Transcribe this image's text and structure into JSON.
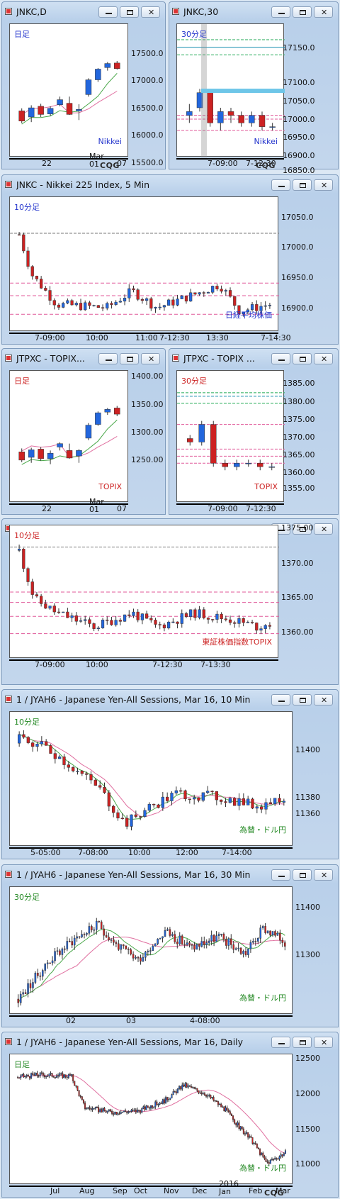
{
  "panels": [
    {
      "id": "p1",
      "title": "JNKC,D",
      "tag": "日足",
      "tag_color": "#2233cc",
      "label": "Nikkei",
      "label_color": "#2233cc",
      "yticks": [
        "17500.0",
        "17000.0",
        "16500.0",
        "16000.0",
        "15500.0"
      ],
      "xticks": [
        "22",
        "Mar\n01",
        "07"
      ],
      "logo": "CQG"
    },
    {
      "id": "p2",
      "title": "JNKC,30",
      "tag": "30分足",
      "tag_color": "#2233cc",
      "label": "Nikkei",
      "label_color": "#2233cc",
      "yticks": [
        "17150.0",
        "17100.0",
        "17050.0",
        "17000.0",
        "16950.0",
        "16900.0",
        "16850.0"
      ],
      "xticks": [
        "7-09:00",
        "7-12:30"
      ],
      "logo": "CQG"
    },
    {
      "id": "p3",
      "title": "JNKC - Nikkei 225 Index, 5 Min",
      "tag": "10分足",
      "tag_color": "#2233cc",
      "label": "日経平均株価",
      "label_color": "#2233cc",
      "yticks": [
        "17050.0",
        "17000.0",
        "16950.0",
        "16900.0"
      ],
      "xticks": [
        "7-09:00",
        "10:00",
        "11:00",
        "7-12:30",
        "13:30",
        "7-14:30"
      ]
    },
    {
      "id": "p4",
      "title": "JTPXC - TOPIX...",
      "tag": "日足",
      "tag_color": "#cc2222",
      "label": "TOPIX",
      "label_color": "#cc2222",
      "yticks": [
        "1400.00",
        "1350.00",
        "1300.00",
        "1250.00"
      ],
      "xticks": [
        "22",
        "Mar\n01",
        "07"
      ]
    },
    {
      "id": "p5",
      "title": "JTPXC - TOPIX ...",
      "tag": "30分足",
      "tag_color": "#cc2222",
      "label": "TOPIX",
      "label_color": "#cc2222",
      "yticks": [
        "1385.00",
        "1380.00",
        "1375.00",
        "1370.00",
        "1365.00",
        "1360.00",
        "1355.00"
      ],
      "xticks": [
        "7-09:00",
        "7-12:30"
      ]
    },
    {
      "id": "p6",
      "title": "JTPXC - TOPIX Index, 5 Min",
      "tag": "10分足",
      "tag_color": "#cc2222",
      "label": "東証株価指数TOPIX",
      "label_color": "#cc2222",
      "yticks": [
        "1375.00",
        "1370.00",
        "1365.00",
        "1360.00"
      ],
      "xticks": [
        "7-09:00",
        "10:00",
        "7-12:30",
        "7-13:30"
      ]
    },
    {
      "id": "p7",
      "title": "1 / JYAH6 - Japanese Yen-All Sessions, Mar 16, 10 Min",
      "tag": "10分足",
      "tag_color": "#228822",
      "label": "為替・ドル円",
      "label_color": "#228822",
      "yticks": [
        "11400",
        "11380",
        "11360"
      ],
      "xticks": [
        "5-05:00",
        "7-08:00",
        "10:00",
        "12:00",
        "7-14:00"
      ]
    },
    {
      "id": "p8",
      "title": "1 / JYAH6 - Japanese Yen-All Sessions, Mar 16, 30 Min",
      "tag": "30分足",
      "tag_color": "#228822",
      "label": "為替・ドル円",
      "label_color": "#228822",
      "yticks": [
        "11400",
        "11300"
      ],
      "xticks": [
        "02",
        "03",
        "4-08:00"
      ]
    },
    {
      "id": "p9",
      "title": "1 / JYAH6 - Japanese Yen-All Sessions, Mar 16, Daily",
      "tag": "日足",
      "tag_color": "#228822",
      "label": "為替・ドル円",
      "label_color": "#228822",
      "yticks": [
        "12500",
        "12000",
        "11500",
        "11000"
      ],
      "xticks": [
        "Jul",
        "Aug",
        "Sep",
        "Oct",
        "Nov",
        "Dec",
        "2016\nJan",
        "Feb",
        "Mar"
      ],
      "logo": "CQG"
    }
  ],
  "chart_data": [
    {
      "type": "candlestick",
      "title": "JNKC,D",
      "timeframe": "日足",
      "series_label": "Nikkei",
      "ylim": [
        15250,
        17700
      ],
      "categories": [
        "22",
        "23",
        "24",
        "25",
        "26",
        "29",
        "01",
        "02",
        "03",
        "04",
        "07"
      ],
      "ohlc": [
        [
          16080,
          16130,
          15840,
          15880
        ],
        [
          15960,
          16190,
          15860,
          16140
        ],
        [
          16170,
          16220,
          15960,
          16010
        ],
        [
          16020,
          16170,
          15980,
          16130
        ],
        [
          16200,
          16360,
          16170,
          16300
        ],
        [
          16230,
          16360,
          16000,
          16010
        ],
        [
          16080,
          16210,
          15900,
          16110
        ],
        [
          16400,
          16720,
          16360,
          16690
        ],
        [
          16690,
          16920,
          16650,
          16900
        ],
        [
          16930,
          17040,
          16870,
          17010
        ],
        [
          17020,
          17060,
          16890,
          16910
        ]
      ],
      "moving_averages": [
        "pink",
        "green"
      ]
    },
    {
      "type": "candlestick",
      "title": "JNKC,30",
      "timeframe": "30分足",
      "series_label": "Nikkei",
      "ylim": [
        16840,
        17170
      ],
      "ohlc": [
        [
          16940,
          16970,
          16920,
          16950
        ],
        [
          16960,
          17010,
          16950,
          17000
        ],
        [
          17000,
          17010,
          16910,
          16920
        ],
        [
          16920,
          16960,
          16900,
          16950
        ],
        [
          16950,
          16960,
          16920,
          16940
        ],
        [
          16940,
          16950,
          16910,
          16920
        ],
        [
          16920,
          16950,
          16910,
          16940
        ],
        [
          16940,
          16950,
          16900,
          16910
        ],
        [
          16910,
          16920,
          16900,
          16910
        ]
      ],
      "levels": [
        17140,
        17120,
        17100,
        16940,
        16930,
        16900
      ]
    },
    {
      "type": "candlestick",
      "title": "JNKC - Nikkei 225 Index, 5 Min",
      "timeframe": "10分足",
      "series_label": "日経平均株価",
      "ylim": [
        16880,
        17070
      ],
      "levels": [
        17022,
        16947,
        16928,
        16900
      ]
    },
    {
      "type": "candlestick",
      "title": "JTPXC - TOPIX...",
      "timeframe": "日足",
      "series_label": "TOPIX",
      "ylim": [
        1230,
        1410
      ],
      "categories": [
        "22",
        "23",
        "24",
        "25",
        "26",
        "29",
        "01",
        "02",
        "03",
        "04",
        "07"
      ],
      "ohlc": [
        [
          1298,
          1303,
          1283,
          1286
        ],
        [
          1290,
          1304,
          1282,
          1301
        ],
        [
          1302,
          1305,
          1285,
          1288
        ],
        [
          1288,
          1300,
          1280,
          1296
        ],
        [
          1305,
          1312,
          1300,
          1310
        ],
        [
          1300,
          1310,
          1288,
          1289
        ],
        [
          1292,
          1302,
          1282,
          1300
        ],
        [
          1318,
          1340,
          1315,
          1337
        ],
        [
          1338,
          1357,
          1336,
          1355
        ],
        [
          1356,
          1362,
          1352,
          1360
        ],
        [
          1362,
          1365,
          1350,
          1353
        ]
      ],
      "moving_averages": [
        "pink",
        "green"
      ]
    },
    {
      "type": "candlestick",
      "title": "JTPXC - TOPIX ...",
      "timeframe": "30分足",
      "series_label": "TOPIX",
      "ylim": [
        1353,
        1388
      ],
      "ohlc": [
        [
          1370,
          1371,
          1368,
          1369
        ],
        [
          1369,
          1375,
          1368,
          1374
        ],
        [
          1374,
          1375,
          1362,
          1363
        ],
        [
          1363,
          1364,
          1361,
          1362
        ],
        [
          1362,
          1364,
          1361,
          1363
        ],
        [
          1363,
          1364,
          1362,
          1363
        ],
        [
          1363,
          1364,
          1361,
          1362
        ],
        [
          1362,
          1363,
          1361,
          1362
        ]
      ],
      "levels": [
        1383,
        1382,
        1380,
        1374,
        1367,
        1365,
        1363
      ]
    },
    {
      "type": "candlestick",
      "title": "JTPXC - TOPIX Index, 5 Min",
      "timeframe": "10分足",
      "series_label": "東証株価指数TOPIX",
      "ylim": [
        1358,
        1376
      ],
      "levels": [
        1373.5,
        1367,
        1365.5,
        1363.5,
        1361
      ]
    },
    {
      "type": "candlestick",
      "title": "1 / JYAH6 - Japanese Yen-All Sessions, Mar 16, 10 Min",
      "timeframe": "10分足",
      "series_label": "為替・ドル円",
      "ylim": [
        11345,
        11415
      ],
      "moving_averages": [
        "pink",
        "green"
      ]
    },
    {
      "type": "candlestick",
      "title": "1 / JYAH6 - Japanese Yen-All Sessions, Mar 16, 30 Min",
      "timeframe": "30分足",
      "series_label": "為替・ドル円",
      "ylim": [
        11250,
        11460
      ],
      "moving_averages": [
        "pink",
        "green"
      ]
    },
    {
      "type": "candlestick",
      "title": "1 / JYAH6 - Japanese Yen-All Sessions, Mar 16, Daily",
      "timeframe": "日足",
      "series_label": "為替・ドル円",
      "ylim": [
        10900,
        12650
      ],
      "moving_averages": [
        "pink"
      ]
    }
  ]
}
